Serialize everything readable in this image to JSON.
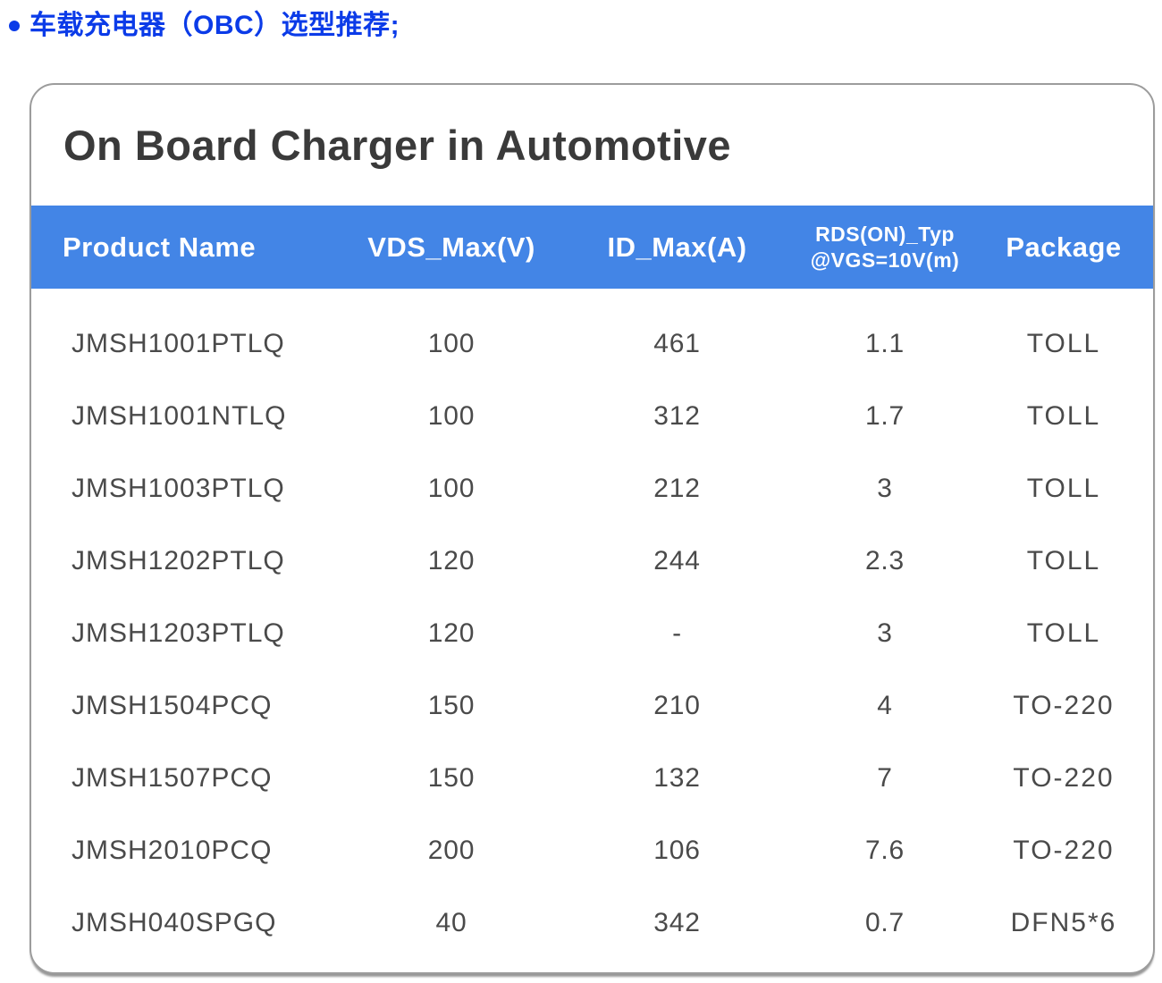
{
  "colors": {
    "heading_text": "#0b3be8",
    "table_header_bg": "#4385e6",
    "table_header_text": "#ffffff",
    "title_text": "#3a3a3a",
    "row_text": "#4a4a4a",
    "card_border": "#9c9c9c"
  },
  "page": {
    "heading": "车载充电器（OBC）选型推荐;"
  },
  "card": {
    "title": "On Board Charger in Automotive",
    "table": {
      "headers": {
        "product": "Product Name",
        "vds": "VDS_Max(V)",
        "id": "ID_Max(A)",
        "rds_line1": "RDS(ON)_Typ",
        "rds_line2": "@VGS=10V(m)",
        "package": "Package"
      },
      "rows": [
        {
          "name": "JMSH1001PTLQ",
          "vds": "100",
          "id": "461",
          "rds": "1.1",
          "pkg": "TOLL"
        },
        {
          "name": "JMSH1001NTLQ",
          "vds": "100",
          "id": "312",
          "rds": "1.7",
          "pkg": "TOLL"
        },
        {
          "name": "JMSH1003PTLQ",
          "vds": "100",
          "id": "212",
          "rds": "3",
          "pkg": "TOLL"
        },
        {
          "name": "JMSH1202PTLQ",
          "vds": "120",
          "id": "244",
          "rds": "2.3",
          "pkg": "TOLL"
        },
        {
          "name": "JMSH1203PTLQ",
          "vds": "120",
          "id": "-",
          "rds": "3",
          "pkg": "TOLL"
        },
        {
          "name": "JMSH1504PCQ",
          "vds": "150",
          "id": "210",
          "rds": "4",
          "pkg": "TO-220"
        },
        {
          "name": "JMSH1507PCQ",
          "vds": "150",
          "id": "132",
          "rds": "7",
          "pkg": "TO-220"
        },
        {
          "name": "JMSH2010PCQ",
          "vds": "200",
          "id": "106",
          "rds": "7.6",
          "pkg": "TO-220"
        },
        {
          "name": "JMSH040SPGQ",
          "vds": "40",
          "id": "342",
          "rds": "0.7",
          "pkg": "DFN5*6"
        }
      ]
    }
  }
}
